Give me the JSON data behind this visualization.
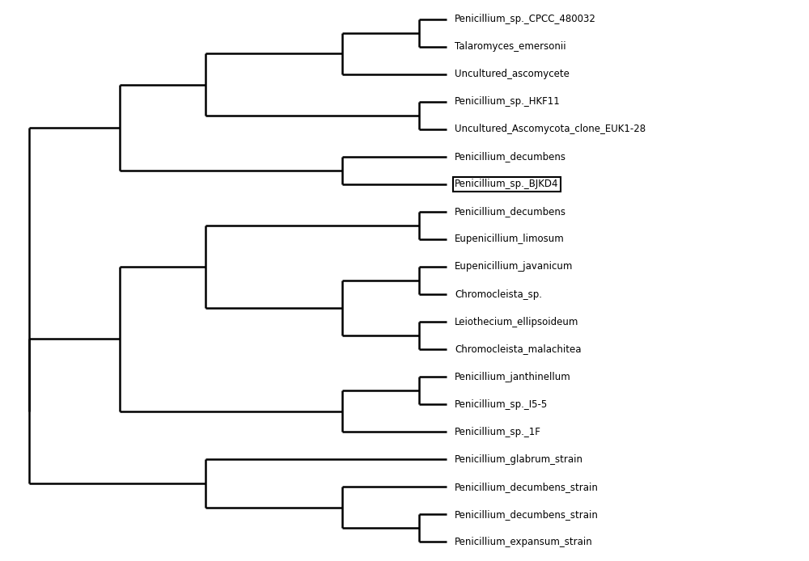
{
  "taxa": [
    "Penicillium_sp._CPCC_480032",
    "Talaromyces_emersonii",
    "Uncultured_ascomycete",
    "Penicillium_sp._HKF11",
    "Uncultured_Ascomycota_clone_EUK1-28",
    "Penicillium_decumbens",
    "Penicillium_sp._BJKD4",
    "Penicillium_decumbens",
    "Eupenicillium_limosum",
    "Eupenicillium_javanicum",
    "Chromocleista_sp.",
    "Leiothecium_ellipsoideum",
    "Chromocleista_malachitea",
    "Penicillium_janthinellum",
    "Penicillium_sp._I5-5",
    "Penicillium_sp._1F",
    "Penicillium_glabrum_strain",
    "Penicillium_decumbens_strain",
    "Penicillium_decumbens_strain",
    "Penicillium_expansum_strain"
  ],
  "boxed_taxon_index": 6,
  "bg_color": "#ffffff",
  "line_color": "#000000",
  "text_color": "#000000",
  "font_size": 8.5,
  "line_width": 1.8
}
